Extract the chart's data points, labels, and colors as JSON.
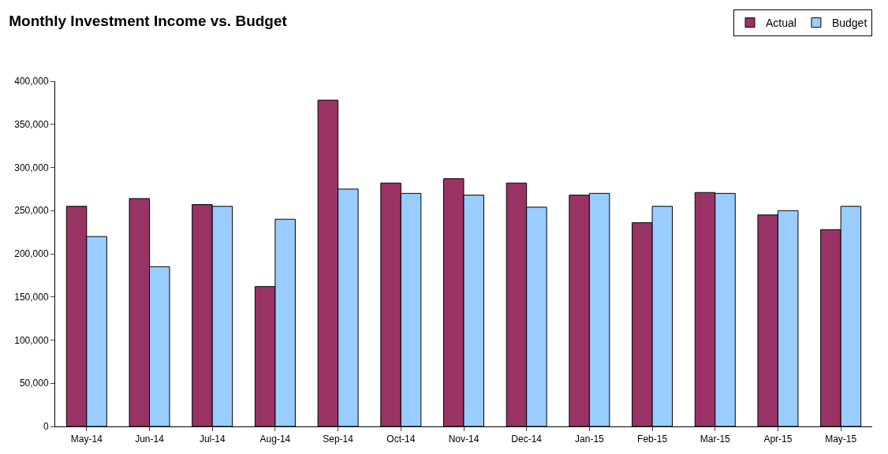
{
  "chart_data": {
    "type": "bar",
    "title": "Monthly Investment Income vs. Budget",
    "categories": [
      "May-14",
      "Jun-14",
      "Jul-14",
      "Aug-14",
      "Sep-14",
      "Oct-14",
      "Nov-14",
      "Dec-14",
      "Jan-15",
      "Feb-15",
      "Mar-15",
      "Apr-15",
      "May-15"
    ],
    "series": [
      {
        "name": "Actual",
        "color": "#993366",
        "values": [
          255000,
          264000,
          257000,
          162000,
          378000,
          282000,
          287000,
          282000,
          268000,
          236000,
          271000,
          245000,
          228000
        ]
      },
      {
        "name": "Budget",
        "color": "#99ccff",
        "values": [
          220000,
          185000,
          255000,
          240000,
          275000,
          270000,
          268000,
          254000,
          270000,
          255000,
          270000,
          250000,
          255000
        ]
      }
    ],
    "ylim": [
      0,
      400000
    ],
    "yticks": [
      {
        "value": 0,
        "label": "0"
      },
      {
        "value": 50000,
        "label": "50,000"
      },
      {
        "value": 100000,
        "label": "100,000"
      },
      {
        "value": 150000,
        "label": "150,000"
      },
      {
        "value": 200000,
        "label": "200,000"
      },
      {
        "value": 250000,
        "label": "250,000"
      },
      {
        "value": 300000,
        "label": "300,000"
      },
      {
        "value": 350000,
        "label": "350,000"
      },
      {
        "value": 400000,
        "label": "400,000"
      }
    ],
    "grid": false,
    "legend": "top right"
  }
}
